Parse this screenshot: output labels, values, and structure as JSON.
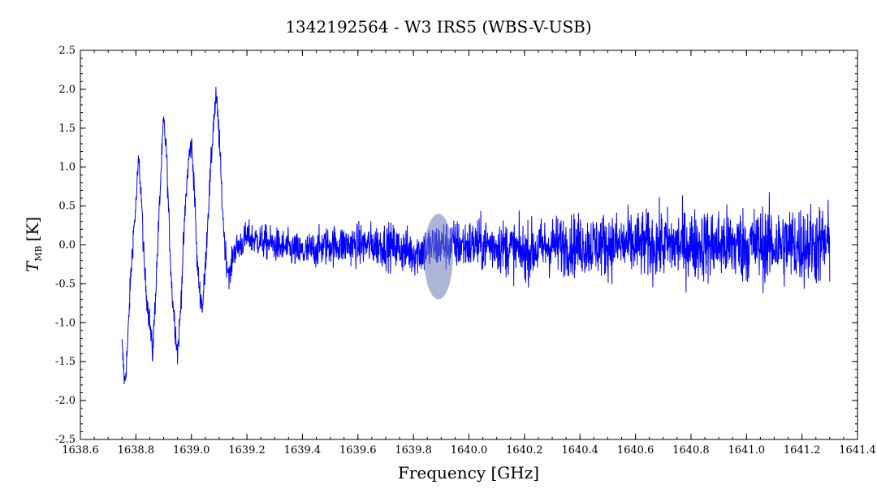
{
  "chart_data": {
    "type": "line",
    "title": "1342192564 - W3 IRS5 (WBS-V-USB)",
    "xlabel": "Frequency [GHz]",
    "ylabel_main": "T",
    "ylabel_sub": "MB",
    "ylabel_unit": "[K]",
    "xlim": [
      1638.6,
      1641.4
    ],
    "ylim": [
      -2.5,
      2.5
    ],
    "x_ticks": [
      1638.6,
      1638.8,
      1639.0,
      1639.2,
      1639.4,
      1639.6,
      1639.8,
      1640.0,
      1640.2,
      1640.4,
      1640.6,
      1640.8,
      1641.0,
      1641.2,
      1641.4
    ],
    "x_tick_labels": [
      "1638.6",
      "1638.8",
      "1639.0",
      "1639.2",
      "1639.4",
      "1639.6",
      "1639.8",
      "1640.0",
      "1640.2",
      "1640.4",
      "1640.6",
      "1640.8",
      "1641.0",
      "1641.2",
      "1641.4"
    ],
    "y_ticks": [
      -2.5,
      -2.0,
      -1.5,
      -1.0,
      -0.5,
      0.0,
      0.5,
      1.0,
      1.5,
      2.0,
      2.5
    ],
    "y_tick_labels": [
      "-2.5",
      "-2.0",
      "-1.5",
      "-1.0",
      "-0.5",
      "0.0",
      "0.5",
      "1.0",
      "1.5",
      "2.0",
      "2.5"
    ],
    "grid": false,
    "series": [
      {
        "color": "#0000ff",
        "x": [
          1638.75,
          1638.76,
          1638.77,
          1638.78,
          1638.79,
          1638.8,
          1638.81,
          1638.82,
          1638.83,
          1638.84,
          1638.85,
          1638.86,
          1638.87,
          1638.88,
          1638.89,
          1638.9,
          1638.91,
          1638.92,
          1638.93,
          1638.94,
          1638.95,
          1638.96,
          1638.97,
          1638.98,
          1638.99,
          1639.0,
          1639.01,
          1639.02,
          1639.03,
          1639.04,
          1639.05,
          1639.06,
          1639.07,
          1639.08,
          1639.09,
          1639.1,
          1639.11,
          1639.12,
          1639.13,
          1639.14,
          1639.15,
          1639.2,
          1639.3,
          1639.4,
          1639.5,
          1639.6,
          1639.7,
          1639.8,
          1639.9,
          1640.0,
          1640.1,
          1640.2,
          1640.3,
          1640.4,
          1640.5,
          1640.6,
          1640.7,
          1640.8,
          1640.9,
          1641.0,
          1641.1,
          1641.2,
          1641.3
        ],
        "y": [
          -1.3,
          -1.8,
          -1.3,
          -0.5,
          0.1,
          0.5,
          1.1,
          0.6,
          -0.3,
          -0.7,
          -1.0,
          -1.4,
          -0.7,
          0.1,
          0.9,
          1.6,
          1.2,
          0.2,
          -0.6,
          -1.0,
          -1.4,
          -0.9,
          -0.1,
          0.6,
          1.1,
          1.3,
          0.8,
          -0.2,
          -0.6,
          -0.8,
          -0.3,
          0.4,
          1.0,
          1.6,
          1.9,
          1.4,
          0.6,
          0.0,
          -0.3,
          -0.4,
          -0.1,
          0.1,
          0.0,
          -0.1,
          0.0,
          0.0,
          0.0,
          -0.1,
          0.0,
          0.0,
          0.0,
          -0.1,
          0.0,
          0.0,
          0.0,
          0.0,
          0.0,
          0.0,
          0.0,
          0.0,
          0.0,
          0.0,
          0.0
        ]
      }
    ],
    "annotations": [
      {
        "type": "ellipse",
        "x": 1639.89,
        "y": -0.15,
        "rx": 0.052,
        "ry": 0.55,
        "color": "#6a78b8",
        "opacity": 0.55
      }
    ]
  }
}
